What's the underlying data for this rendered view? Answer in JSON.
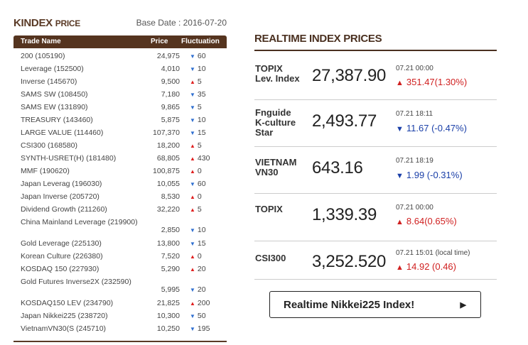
{
  "left": {
    "title_main": "KINDEX",
    "title_sub": "PRICE",
    "base_date": "Base Date : 2016-07-20",
    "headers": {
      "name": "Trade Name",
      "price": "Price",
      "fluct": "Fluctuation"
    },
    "rows": [
      {
        "name": "200 (105190)",
        "price": "24,975",
        "dir": "down",
        "fluct": "60"
      },
      {
        "name": "Leverage (152500)",
        "price": "4,010",
        "dir": "down",
        "fluct": "10"
      },
      {
        "name": "Inverse (145670)",
        "price": "9,500",
        "dir": "up",
        "fluct": "5"
      },
      {
        "name": "SAMS SW (108450)",
        "price": "7,180",
        "dir": "down",
        "fluct": "35"
      },
      {
        "name": "SAMS EW (131890)",
        "price": "9,865",
        "dir": "down",
        "fluct": "5"
      },
      {
        "name": "TREASURY (143460)",
        "price": "5,875",
        "dir": "down",
        "fluct": "10"
      },
      {
        "name": "LARGE VALUE (114460)",
        "price": "107,370",
        "dir": "down",
        "fluct": "15"
      },
      {
        "name": "CSI300 (168580)",
        "price": "18,200",
        "dir": "up",
        "fluct": "5"
      },
      {
        "name": "SYNTH-USRET(H) (181480)",
        "price": "68,805",
        "dir": "up",
        "fluct": "430"
      },
      {
        "name": "MMF (190620)",
        "price": "100,875",
        "dir": "up",
        "fluct": "0"
      },
      {
        "name": "Japan Leverag (196030)",
        "price": "10,055",
        "dir": "down",
        "fluct": "60"
      },
      {
        "name": "Japan Inverse (205720)",
        "price": "8,530",
        "dir": "up",
        "fluct": "0"
      },
      {
        "name": "Dividend Growth (211260)",
        "price": "32,220",
        "dir": "up",
        "fluct": "5"
      },
      {
        "name": "China Mainland Leverage (219900)",
        "price": "2,850",
        "dir": "down",
        "fluct": "10",
        "tall": true
      },
      {
        "name": "Gold Leverage (225130)",
        "price": "13,800",
        "dir": "down",
        "fluct": "15"
      },
      {
        "name": "Korean Culture (226380)",
        "price": "7,520",
        "dir": "up",
        "fluct": "0"
      },
      {
        "name": "KOSDAQ 150 (227930)",
        "price": "5,290",
        "dir": "up",
        "fluct": "20"
      },
      {
        "name": "Gold Futures Inverse2X (232590)",
        "price": "5,995",
        "dir": "down",
        "fluct": "20",
        "tall": true
      },
      {
        "name": "KOSDAQ150 LEV (234790)",
        "price": "21,825",
        "dir": "up",
        "fluct": "200"
      },
      {
        "name": "Japan Nikkei225 (238720)",
        "price": "10,300",
        "dir": "down",
        "fluct": "50"
      },
      {
        "name": "VietnamVN30(S (245710)",
        "price": "10,250",
        "dir": "down",
        "fluct": "195"
      }
    ]
  },
  "right": {
    "title": "REALTIME INDEX PRICES",
    "indices": [
      {
        "name": "TOPIX\nLev. Index",
        "value": "27,387.90",
        "time": "07.21 00:00",
        "dir": "up",
        "change": "351.47(1.30%)"
      },
      {
        "name": "Fnguide\nK-culture\nStar",
        "value": "2,493.77",
        "time": "07.21 18:11",
        "dir": "down",
        "change": "11.67 (-0.47%)"
      },
      {
        "name": "VIETNAM\nVN30",
        "value": "643.16",
        "time": "07.21 18:19",
        "dir": "down",
        "change": "1.99 (-0.31%)"
      },
      {
        "name": "TOPIX",
        "value": "1,339.39",
        "time": "07.21 00:00",
        "dir": "up",
        "change": "8.64(0.65%)"
      },
      {
        "name": "CSI300",
        "value": "3,252.520",
        "time": "07.21 15:01 (local time)",
        "dir": "up",
        "change": "14.92 (0.46)"
      }
    ],
    "button_label": "Realtime Nikkei225 Index!",
    "button_arrow": "▶"
  },
  "icons": {
    "up": "▲",
    "down": "▼"
  },
  "colors": {
    "brand": "#55341f",
    "up": "#e02020",
    "down": "#2f6fd0"
  }
}
